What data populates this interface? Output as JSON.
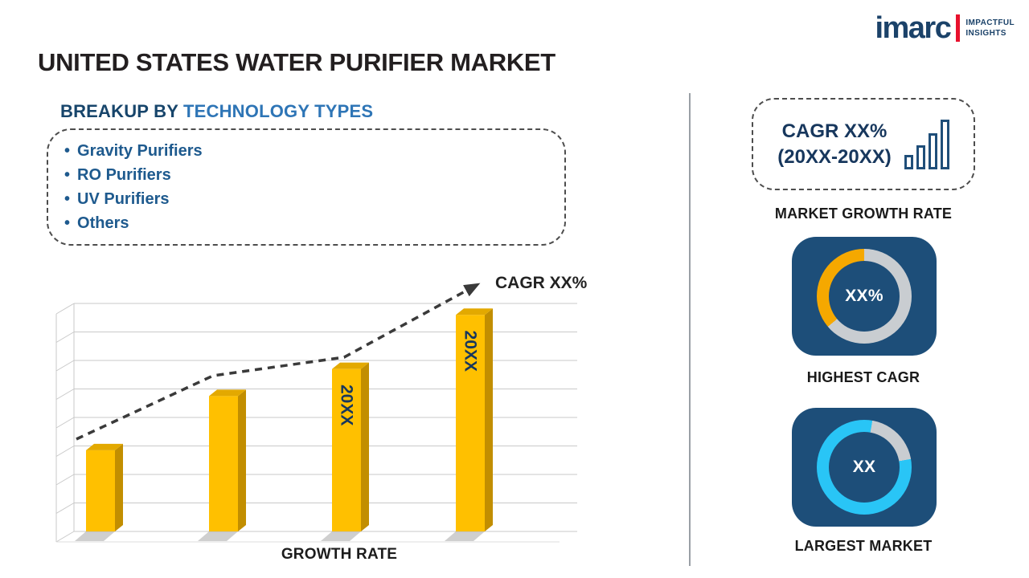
{
  "logo": {
    "brand": "imarc",
    "tagline_line1": "IMPACTFUL",
    "tagline_line2": "INSIGHTS"
  },
  "title": "UNITED STATES WATER PURIFIER MARKET",
  "breakup": {
    "heading_prefix": "BREAKUP BY",
    "heading_highlight": "TECHNOLOGY TYPES",
    "items": [
      "Gravity Purifiers",
      "RO Purifiers",
      "UV Purifiers",
      "Others"
    ]
  },
  "chart_data": {
    "type": "bar",
    "title": "",
    "xlabel": "GROWTH RATE",
    "ylabel": "",
    "categories": [
      "",
      "",
      "20XX",
      "20XX"
    ],
    "bar_labels": [
      "",
      "",
      "20XX",
      "20XX"
    ],
    "values_relative": [
      0.36,
      0.6,
      0.72,
      0.96
    ],
    "trend_label": "CAGR XX%",
    "grid_line_count": 9,
    "legend_position": "none",
    "trend_points": [
      [
        45,
        212
      ],
      [
        215,
        133
      ],
      [
        378,
        110
      ],
      [
        543,
        20
      ]
    ],
    "colors": {
      "bar_face": "#FFC000",
      "bar_side": "#C28E00",
      "bar_top": "#E3A900",
      "bar_label": "#17375D",
      "trend": "#3A3A3A",
      "grid": "#C9C9C9",
      "shadow": "#A8A8A8"
    }
  },
  "right_panel": {
    "growth_box": {
      "line1": "CAGR XX%",
      "line2": "(20XX-20XX)"
    },
    "market_growth_label": "MARKET GROWTH RATE",
    "highest_cagr": {
      "value": "XX%",
      "label": "HIGHEST CAGR",
      "ring_color": "#F5A800",
      "ring_base": "#C9CDD1"
    },
    "largest_market": {
      "value": "XX",
      "label": "LARGEST MARKET",
      "ring_color": "#29C5F6",
      "ring_base": "#C9CDD1"
    },
    "card_color": "#1D4E79"
  },
  "colors": {
    "brand_navy": "#1B4269",
    "accent_red": "#E8112D",
    "heading_navy": "#17456B",
    "heading_blue": "#2E75B6",
    "list_blue": "#1E5A8E",
    "text_dark": "#231F20",
    "divider": "#9AA0A6"
  }
}
